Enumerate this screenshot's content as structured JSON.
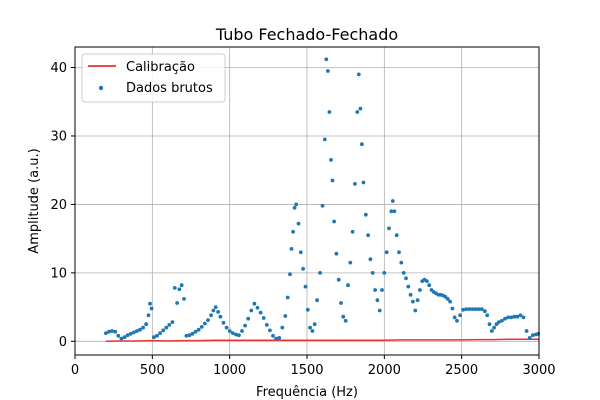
{
  "chart_data": {
    "type": "scatter",
    "title": "Tubo Fechado-Fechado",
    "xlabel": "Frequência (Hz)",
    "ylabel": "Amplitude (a.u.)",
    "xlim": [
      0,
      3000
    ],
    "ylim": [
      -2,
      43
    ],
    "x_ticks": [
      0,
      500,
      1000,
      1500,
      2000,
      2500,
      3000
    ],
    "y_ticks": [
      0,
      10,
      20,
      30,
      40
    ],
    "grid": true,
    "legend_position": "upper-left",
    "series": [
      {
        "name": "Calibração",
        "kind": "line",
        "color": "#ee3333",
        "x": [
          200,
          300,
          400,
          500,
          600,
          700,
          800,
          900,
          1000,
          1100,
          1200,
          1300,
          1400,
          1500,
          1600,
          1700,
          1800,
          1900,
          2000,
          2100,
          2200,
          2300,
          2400,
          2500,
          2600,
          2700,
          2800,
          2900,
          3000
        ],
        "values": [
          0.0,
          0.05,
          0.05,
          0.1,
          0.05,
          0.1,
          0.1,
          0.15,
          0.15,
          0.15,
          0.15,
          0.15,
          0.15,
          0.15,
          0.15,
          0.15,
          0.15,
          0.15,
          0.15,
          0.2,
          0.2,
          0.2,
          0.2,
          0.2,
          0.25,
          0.25,
          0.3,
          0.3,
          0.3
        ]
      },
      {
        "name": "Dados brutos",
        "kind": "scatter",
        "color": "#1f77b4",
        "points": [
          [
            200,
            1.2
          ],
          [
            220,
            1.4
          ],
          [
            240,
            1.5
          ],
          [
            260,
            1.4
          ],
          [
            280,
            0.8
          ],
          [
            300,
            0.4
          ],
          [
            320,
            0.6
          ],
          [
            340,
            0.9
          ],
          [
            360,
            1.1
          ],
          [
            380,
            1.3
          ],
          [
            400,
            1.5
          ],
          [
            420,
            1.7
          ],
          [
            440,
            2.0
          ],
          [
            460,
            2.5
          ],
          [
            475,
            3.8
          ],
          [
            485,
            5.5
          ],
          [
            495,
            4.8
          ],
          [
            510,
            0.6
          ],
          [
            530,
            0.8
          ],
          [
            550,
            1.2
          ],
          [
            570,
            1.6
          ],
          [
            590,
            2.0
          ],
          [
            610,
            2.4
          ],
          [
            630,
            2.8
          ],
          [
            645,
            7.8
          ],
          [
            660,
            5.6
          ],
          [
            675,
            7.6
          ],
          [
            690,
            8.2
          ],
          [
            705,
            6.2
          ],
          [
            720,
            0.8
          ],
          [
            740,
            0.9
          ],
          [
            760,
            1.1
          ],
          [
            780,
            1.4
          ],
          [
            800,
            1.7
          ],
          [
            820,
            2.1
          ],
          [
            840,
            2.6
          ],
          [
            860,
            3.1
          ],
          [
            880,
            3.8
          ],
          [
            895,
            4.5
          ],
          [
            910,
            5.0
          ],
          [
            925,
            4.3
          ],
          [
            940,
            3.6
          ],
          [
            960,
            2.7
          ],
          [
            980,
            2.0
          ],
          [
            1000,
            1.5
          ],
          [
            1020,
            1.2
          ],
          [
            1040,
            1.0
          ],
          [
            1060,
            0.9
          ],
          [
            1080,
            1.5
          ],
          [
            1100,
            2.3
          ],
          [
            1120,
            3.3
          ],
          [
            1140,
            4.5
          ],
          [
            1160,
            5.5
          ],
          [
            1180,
            4.9
          ],
          [
            1200,
            4.2
          ],
          [
            1220,
            3.4
          ],
          [
            1240,
            2.4
          ],
          [
            1260,
            1.6
          ],
          [
            1280,
            0.8
          ],
          [
            1300,
            0.4
          ],
          [
            1320,
            0.5
          ],
          [
            1340,
            2.0
          ],
          [
            1360,
            3.7
          ],
          [
            1375,
            6.4
          ],
          [
            1390,
            9.8
          ],
          [
            1400,
            13.5
          ],
          [
            1410,
            16.0
          ],
          [
            1420,
            19.5
          ],
          [
            1430,
            20.0
          ],
          [
            1445,
            17.2
          ],
          [
            1460,
            13.0
          ],
          [
            1475,
            10.6
          ],
          [
            1490,
            8.0
          ],
          [
            1505,
            4.6
          ],
          [
            1520,
            2.0
          ],
          [
            1535,
            1.5
          ],
          [
            1550,
            2.5
          ],
          [
            1565,
            6.0
          ],
          [
            1585,
            10.0
          ],
          [
            1600,
            19.8
          ],
          [
            1615,
            29.5
          ],
          [
            1625,
            41.2
          ],
          [
            1635,
            39.5
          ],
          [
            1645,
            33.5
          ],
          [
            1655,
            26.5
          ],
          [
            1665,
            23.5
          ],
          [
            1675,
            17.5
          ],
          [
            1690,
            12.8
          ],
          [
            1705,
            9.0
          ],
          [
            1720,
            5.6
          ],
          [
            1735,
            3.6
          ],
          [
            1750,
            3.0
          ],
          [
            1765,
            8.2
          ],
          [
            1780,
            11.5
          ],
          [
            1795,
            16.0
          ],
          [
            1810,
            23.0
          ],
          [
            1825,
            33.5
          ],
          [
            1835,
            39.0
          ],
          [
            1845,
            34.0
          ],
          [
            1855,
            28.8
          ],
          [
            1865,
            23.2
          ],
          [
            1880,
            18.5
          ],
          [
            1895,
            15.5
          ],
          [
            1910,
            12.0
          ],
          [
            1925,
            10.0
          ],
          [
            1940,
            7.5
          ],
          [
            1955,
            6.0
          ],
          [
            1970,
            4.5
          ],
          [
            1985,
            7.5
          ],
          [
            2000,
            10.0
          ],
          [
            2015,
            13.0
          ],
          [
            2030,
            16.5
          ],
          [
            2045,
            19.0
          ],
          [
            2055,
            20.5
          ],
          [
            2065,
            19.0
          ],
          [
            2080,
            15.5
          ],
          [
            2095,
            13.0
          ],
          [
            2110,
            11.5
          ],
          [
            2125,
            10.0
          ],
          [
            2140,
            9.2
          ],
          [
            2155,
            8.0
          ],
          [
            2170,
            6.8
          ],
          [
            2185,
            5.8
          ],
          [
            2200,
            4.5
          ],
          [
            2215,
            6.0
          ],
          [
            2230,
            7.5
          ],
          [
            2245,
            8.8
          ],
          [
            2260,
            9.0
          ],
          [
            2275,
            8.8
          ],
          [
            2290,
            8.2
          ],
          [
            2305,
            7.5
          ],
          [
            2320,
            7.2
          ],
          [
            2335,
            7.0
          ],
          [
            2350,
            6.8
          ],
          [
            2365,
            6.8
          ],
          [
            2380,
            6.7
          ],
          [
            2395,
            6.5
          ],
          [
            2410,
            6.2
          ],
          [
            2425,
            5.8
          ],
          [
            2440,
            4.8
          ],
          [
            2455,
            3.5
          ],
          [
            2470,
            3.0
          ],
          [
            2490,
            3.8
          ],
          [
            2510,
            4.6
          ],
          [
            2530,
            4.7
          ],
          [
            2550,
            4.7
          ],
          [
            2570,
            4.7
          ],
          [
            2590,
            4.7
          ],
          [
            2610,
            4.7
          ],
          [
            2630,
            4.7
          ],
          [
            2650,
            4.4
          ],
          [
            2665,
            3.8
          ],
          [
            2680,
            2.5
          ],
          [
            2695,
            1.5
          ],
          [
            2710,
            2.0
          ],
          [
            2725,
            2.5
          ],
          [
            2740,
            2.8
          ],
          [
            2760,
            3.0
          ],
          [
            2780,
            3.3
          ],
          [
            2800,
            3.5
          ],
          [
            2820,
            3.5
          ],
          [
            2840,
            3.6
          ],
          [
            2860,
            3.6
          ],
          [
            2880,
            3.8
          ],
          [
            2900,
            3.5
          ],
          [
            2920,
            1.5
          ],
          [
            2940,
            0.5
          ],
          [
            2960,
            0.9
          ],
          [
            2980,
            1.0
          ],
          [
            2995,
            1.1
          ]
        ]
      }
    ]
  }
}
